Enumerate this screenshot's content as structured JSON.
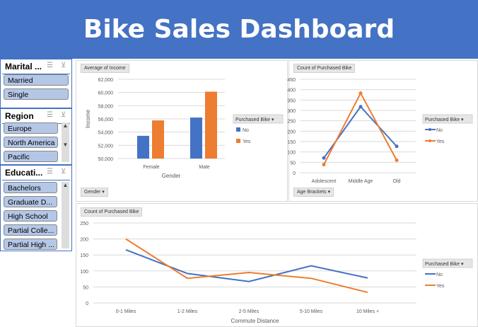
{
  "header": {
    "title": "Bike Sales Dashboard"
  },
  "slicers": [
    {
      "title": "Marital ...",
      "items": [
        "Married",
        "Single"
      ]
    },
    {
      "title": "Region",
      "items": [
        "Europe",
        "North America",
        "Pacific"
      ]
    },
    {
      "title": "Educati...",
      "items": [
        "Bachelors",
        "Graduate D...",
        "High School",
        "Partial Colle...",
        "Partial High ..."
      ]
    }
  ],
  "colors": {
    "no": "#4472c4",
    "yes": "#ed7d31",
    "header": "#4472c4"
  },
  "chart_data": [
    {
      "type": "bar",
      "value_button": "Average of Income",
      "axis_button": "Gender",
      "xlabel": "Gender",
      "ylabel": "Income",
      "legend_title": "Purchased Bike",
      "legend": "right",
      "categories": [
        "Female",
        "Male"
      ],
      "ylim": [
        50000,
        62000
      ],
      "yticks": [
        "50,000",
        "52,000",
        "54,000",
        "56,000",
        "58,000",
        "60,000",
        "62,000"
      ],
      "series": [
        {
          "name": "No",
          "values": [
            53440,
            56208
          ]
        },
        {
          "name": "Yes",
          "values": [
            55775,
            60124
          ]
        }
      ]
    },
    {
      "type": "line",
      "value_button": "Count of Purchased Bike",
      "axis_button": "Age Brackets",
      "legend_title": "Purchased Bike",
      "legend": "right",
      "categories": [
        "Adolescent",
        "Middle Age",
        "Old"
      ],
      "ylim": [
        0,
        450
      ],
      "yticks": [
        "0",
        "50",
        "100",
        "150",
        "200",
        "250",
        "300",
        "350",
        "400",
        "450"
      ],
      "series": [
        {
          "name": "No",
          "values": [
            71,
            318,
            127
          ]
        },
        {
          "name": "Yes",
          "values": [
            39,
            383,
            60
          ]
        }
      ]
    },
    {
      "type": "line",
      "value_button": "Count of Purchased Bike",
      "xlabel": "Commute Distance",
      "legend_title": "Purchased Bike",
      "legend": "right",
      "categories": [
        "0-1 Miles",
        "1-2 Miles",
        "2-5 Miles",
        "5-10 Miles",
        "10 Miles +"
      ],
      "ylim": [
        0,
        250
      ],
      "yticks": [
        "0",
        "50",
        "100",
        "150",
        "200",
        "250"
      ],
      "series": [
        {
          "name": "No",
          "values": [
            166,
            92,
            67,
            116,
            78
          ]
        },
        {
          "name": "Yes",
          "values": [
            200,
            77,
            95,
            77,
            33
          ]
        }
      ]
    }
  ]
}
